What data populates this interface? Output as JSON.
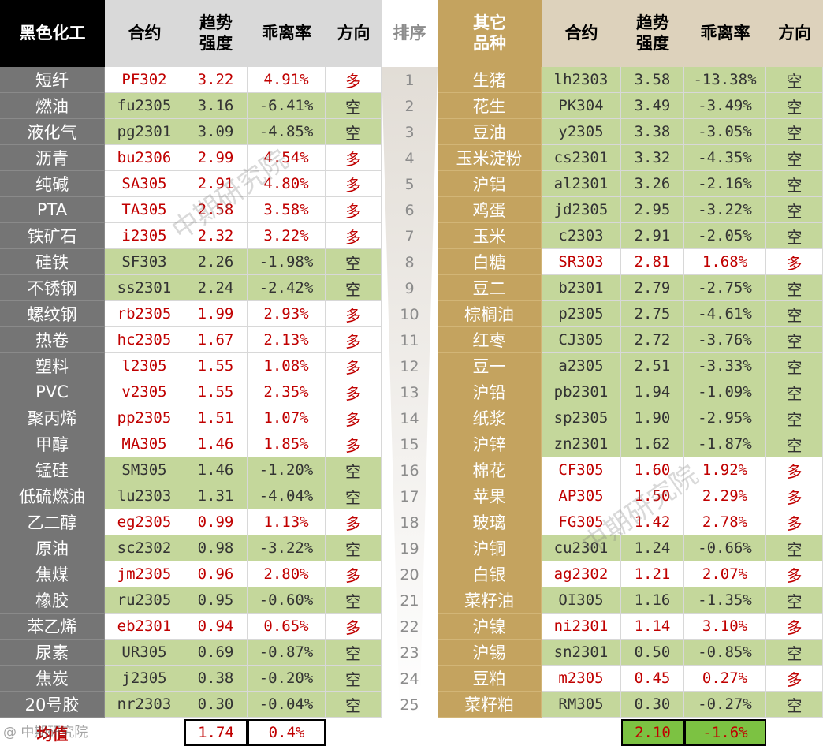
{
  "headers": {
    "left_category": "黑色化工",
    "contract": "合约",
    "strength": "趋势\n强度",
    "deviation": "乖离率",
    "direction": "方向",
    "rank": "排序",
    "right_category": "其它\n品种"
  },
  "left_rows": [
    {
      "name": "短纤",
      "contract": "PF302",
      "strength": "3.22",
      "deviation": "4.91%",
      "direction": "多"
    },
    {
      "name": "燃油",
      "contract": "fu2305",
      "strength": "3.16",
      "deviation": "-6.41%",
      "direction": "空"
    },
    {
      "name": "液化气",
      "contract": "pg2301",
      "strength": "3.09",
      "deviation": "-4.85%",
      "direction": "空"
    },
    {
      "name": "沥青",
      "contract": "bu2306",
      "strength": "2.99",
      "deviation": "4.54%",
      "direction": "多"
    },
    {
      "name": "纯碱",
      "contract": "SA305",
      "strength": "2.91",
      "deviation": "4.80%",
      "direction": "多"
    },
    {
      "name": "PTA",
      "contract": "TA305",
      "strength": "2.58",
      "deviation": "3.58%",
      "direction": "多"
    },
    {
      "name": "铁矿石",
      "contract": "i2305",
      "strength": "2.32",
      "deviation": "3.22%",
      "direction": "多"
    },
    {
      "name": "硅铁",
      "contract": "SF303",
      "strength": "2.26",
      "deviation": "-1.98%",
      "direction": "空"
    },
    {
      "name": "不锈钢",
      "contract": "ss2301",
      "strength": "2.24",
      "deviation": "-2.42%",
      "direction": "空"
    },
    {
      "name": "螺纹钢",
      "contract": "rb2305",
      "strength": "1.99",
      "deviation": "2.93%",
      "direction": "多"
    },
    {
      "name": "热卷",
      "contract": "hc2305",
      "strength": "1.67",
      "deviation": "2.13%",
      "direction": "多"
    },
    {
      "name": "塑料",
      "contract": "l2305",
      "strength": "1.55",
      "deviation": "1.08%",
      "direction": "多"
    },
    {
      "name": "PVC",
      "contract": "v2305",
      "strength": "1.55",
      "deviation": "2.35%",
      "direction": "多"
    },
    {
      "name": "聚丙烯",
      "contract": "pp2305",
      "strength": "1.51",
      "deviation": "1.07%",
      "direction": "多"
    },
    {
      "name": "甲醇",
      "contract": "MA305",
      "strength": "1.46",
      "deviation": "1.85%",
      "direction": "多"
    },
    {
      "name": "锰硅",
      "contract": "SM305",
      "strength": "1.46",
      "deviation": "-1.20%",
      "direction": "空"
    },
    {
      "name": "低硫燃油",
      "contract": "lu2303",
      "strength": "1.31",
      "deviation": "-4.04%",
      "direction": "空"
    },
    {
      "name": "乙二醇",
      "contract": "eg2305",
      "strength": "0.99",
      "deviation": "1.13%",
      "direction": "多"
    },
    {
      "name": "原油",
      "contract": "sc2302",
      "strength": "0.98",
      "deviation": "-3.22%",
      "direction": "空"
    },
    {
      "name": "焦煤",
      "contract": "jm2305",
      "strength": "0.96",
      "deviation": "2.80%",
      "direction": "多"
    },
    {
      "name": "橡胶",
      "contract": "ru2305",
      "strength": "0.95",
      "deviation": "-0.60%",
      "direction": "空"
    },
    {
      "name": "苯乙烯",
      "contract": "eb2301",
      "strength": "0.94",
      "deviation": "0.65%",
      "direction": "多"
    },
    {
      "name": "尿素",
      "contract": "UR305",
      "strength": "0.69",
      "deviation": "-0.87%",
      "direction": "空"
    },
    {
      "name": "焦炭",
      "contract": "j2305",
      "strength": "0.38",
      "deviation": "-0.20%",
      "direction": "空"
    },
    {
      "name": "20号胶",
      "contract": "nr2303",
      "strength": "0.30",
      "deviation": "-0.04%",
      "direction": "空"
    }
  ],
  "ranks": [
    "1",
    "2",
    "3",
    "4",
    "5",
    "6",
    "7",
    "8",
    "9",
    "10",
    "11",
    "12",
    "13",
    "14",
    "15",
    "16",
    "17",
    "18",
    "19",
    "20",
    "21",
    "22",
    "23",
    "24",
    "25"
  ],
  "right_rows": [
    {
      "name": "生猪",
      "contract": "lh2303",
      "strength": "3.58",
      "deviation": "-13.38%",
      "direction": "空"
    },
    {
      "name": "花生",
      "contract": "PK304",
      "strength": "3.49",
      "deviation": "-3.49%",
      "direction": "空"
    },
    {
      "name": "豆油",
      "contract": "y2305",
      "strength": "3.38",
      "deviation": "-3.05%",
      "direction": "空"
    },
    {
      "name": "玉米淀粉",
      "contract": "cs2301",
      "strength": "3.32",
      "deviation": "-4.35%",
      "direction": "空"
    },
    {
      "name": "沪铝",
      "contract": "al2301",
      "strength": "3.26",
      "deviation": "-2.16%",
      "direction": "空"
    },
    {
      "name": "鸡蛋",
      "contract": "jd2305",
      "strength": "2.95",
      "deviation": "-3.22%",
      "direction": "空"
    },
    {
      "name": "玉米",
      "contract": "c2303",
      "strength": "2.91",
      "deviation": "-2.05%",
      "direction": "空"
    },
    {
      "name": "白糖",
      "contract": "SR303",
      "strength": "2.81",
      "deviation": "1.68%",
      "direction": "多"
    },
    {
      "name": "豆二",
      "contract": "b2301",
      "strength": "2.79",
      "deviation": "-2.75%",
      "direction": "空"
    },
    {
      "name": "棕榈油",
      "contract": "p2305",
      "strength": "2.75",
      "deviation": "-4.61%",
      "direction": "空"
    },
    {
      "name": "红枣",
      "contract": "CJ305",
      "strength": "2.72",
      "deviation": "-3.76%",
      "direction": "空"
    },
    {
      "name": "豆一",
      "contract": "a2305",
      "strength": "2.51",
      "deviation": "-3.33%",
      "direction": "空"
    },
    {
      "name": "沪铅",
      "contract": "pb2301",
      "strength": "1.94",
      "deviation": "-1.09%",
      "direction": "空"
    },
    {
      "name": "纸浆",
      "contract": "sp2305",
      "strength": "1.90",
      "deviation": "-2.95%",
      "direction": "空"
    },
    {
      "name": "沪锌",
      "contract": "zn2301",
      "strength": "1.62",
      "deviation": "-1.87%",
      "direction": "空"
    },
    {
      "name": "棉花",
      "contract": "CF305",
      "strength": "1.60",
      "deviation": "1.92%",
      "direction": "多"
    },
    {
      "name": "苹果",
      "contract": "AP305",
      "strength": "1.50",
      "deviation": "2.29%",
      "direction": "多"
    },
    {
      "name": "玻璃",
      "contract": "FG305",
      "strength": "1.42",
      "deviation": "2.78%",
      "direction": "多"
    },
    {
      "name": "沪铜",
      "contract": "cu2301",
      "strength": "1.24",
      "deviation": "-0.66%",
      "direction": "空"
    },
    {
      "name": "白银",
      "contract": "ag2302",
      "strength": "1.21",
      "deviation": "2.07%",
      "direction": "多"
    },
    {
      "name": "菜籽油",
      "contract": "OI305",
      "strength": "1.16",
      "deviation": "-1.35%",
      "direction": "空"
    },
    {
      "name": "沪镍",
      "contract": "ni2301",
      "strength": "1.14",
      "deviation": "3.10%",
      "direction": "多"
    },
    {
      "name": "沪锡",
      "contract": "sn2301",
      "strength": "0.50",
      "deviation": "-0.85%",
      "direction": "空"
    },
    {
      "name": "豆粕",
      "contract": "m2305",
      "strength": "0.45",
      "deviation": "0.27%",
      "direction": "多"
    },
    {
      "name": "菜籽粕",
      "contract": "RM305",
      "strength": "0.30",
      "deviation": "-0.27%",
      "direction": "空"
    }
  ],
  "average": {
    "label": "均值",
    "left_strength": "1.74",
    "left_deviation": "0.4%",
    "right_strength": "2.10",
    "right_deviation": "-1.6%"
  },
  "watermarks": {
    "main": "中期研究院",
    "corner": "@ 中期研究院"
  },
  "colors": {
    "long_text": "#c00000",
    "short_fill": "#c4d79b",
    "left_name_fill": "#757575",
    "right_name_fill": "#c4a35f",
    "right_header_fill": "#ddd2bc",
    "average_highlight": "#7cc242"
  }
}
